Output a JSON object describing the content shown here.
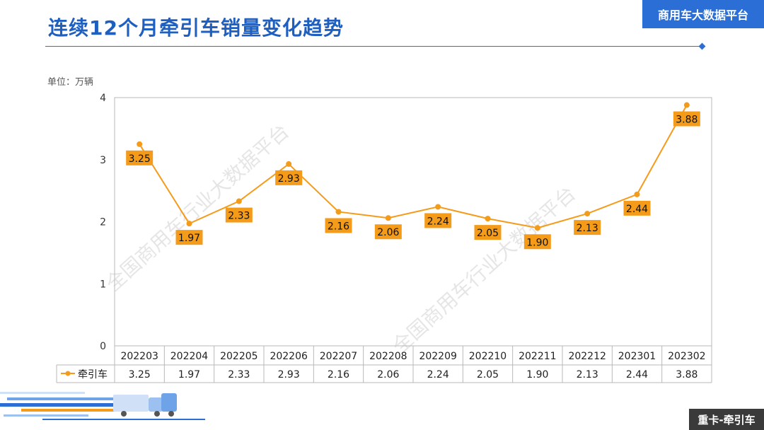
{
  "header": {
    "title": "连续12个月牵引车销量变化趋势",
    "brand": "商用车大数据平台"
  },
  "unit_label": "单位：万辆",
  "footer_tag": "重卡-牵引车",
  "watermarks": [
    "全国商用车行业大数据平台",
    "全国商用车行业大数据平台"
  ],
  "colors": {
    "series": "#f59b1a",
    "label_bg": "#f59b1a",
    "accent": "#2b6fd6"
  },
  "chart_data": {
    "type": "line",
    "categories": [
      "202203",
      "202204",
      "202205",
      "202206",
      "202207",
      "202208",
      "202209",
      "202210",
      "202211",
      "202212",
      "202301",
      "202302"
    ],
    "series": [
      {
        "name": "牵引车",
        "values": [
          3.25,
          1.97,
          2.33,
          2.93,
          2.16,
          2.06,
          2.24,
          2.05,
          1.9,
          2.13,
          2.44,
          3.88
        ]
      }
    ],
    "data_labels": [
      "3.25",
      "1.97",
      "2.33",
      "2.93",
      "2.16",
      "2.06",
      "2.24",
      "2.05",
      "1.90",
      "2.13",
      "2.44",
      "3.88"
    ],
    "ylim": [
      0,
      4
    ],
    "yticks": [
      "0",
      "1",
      "2",
      "3",
      "4"
    ],
    "ylabel": "单位：万辆",
    "grid": false,
    "legend": "data-table"
  }
}
